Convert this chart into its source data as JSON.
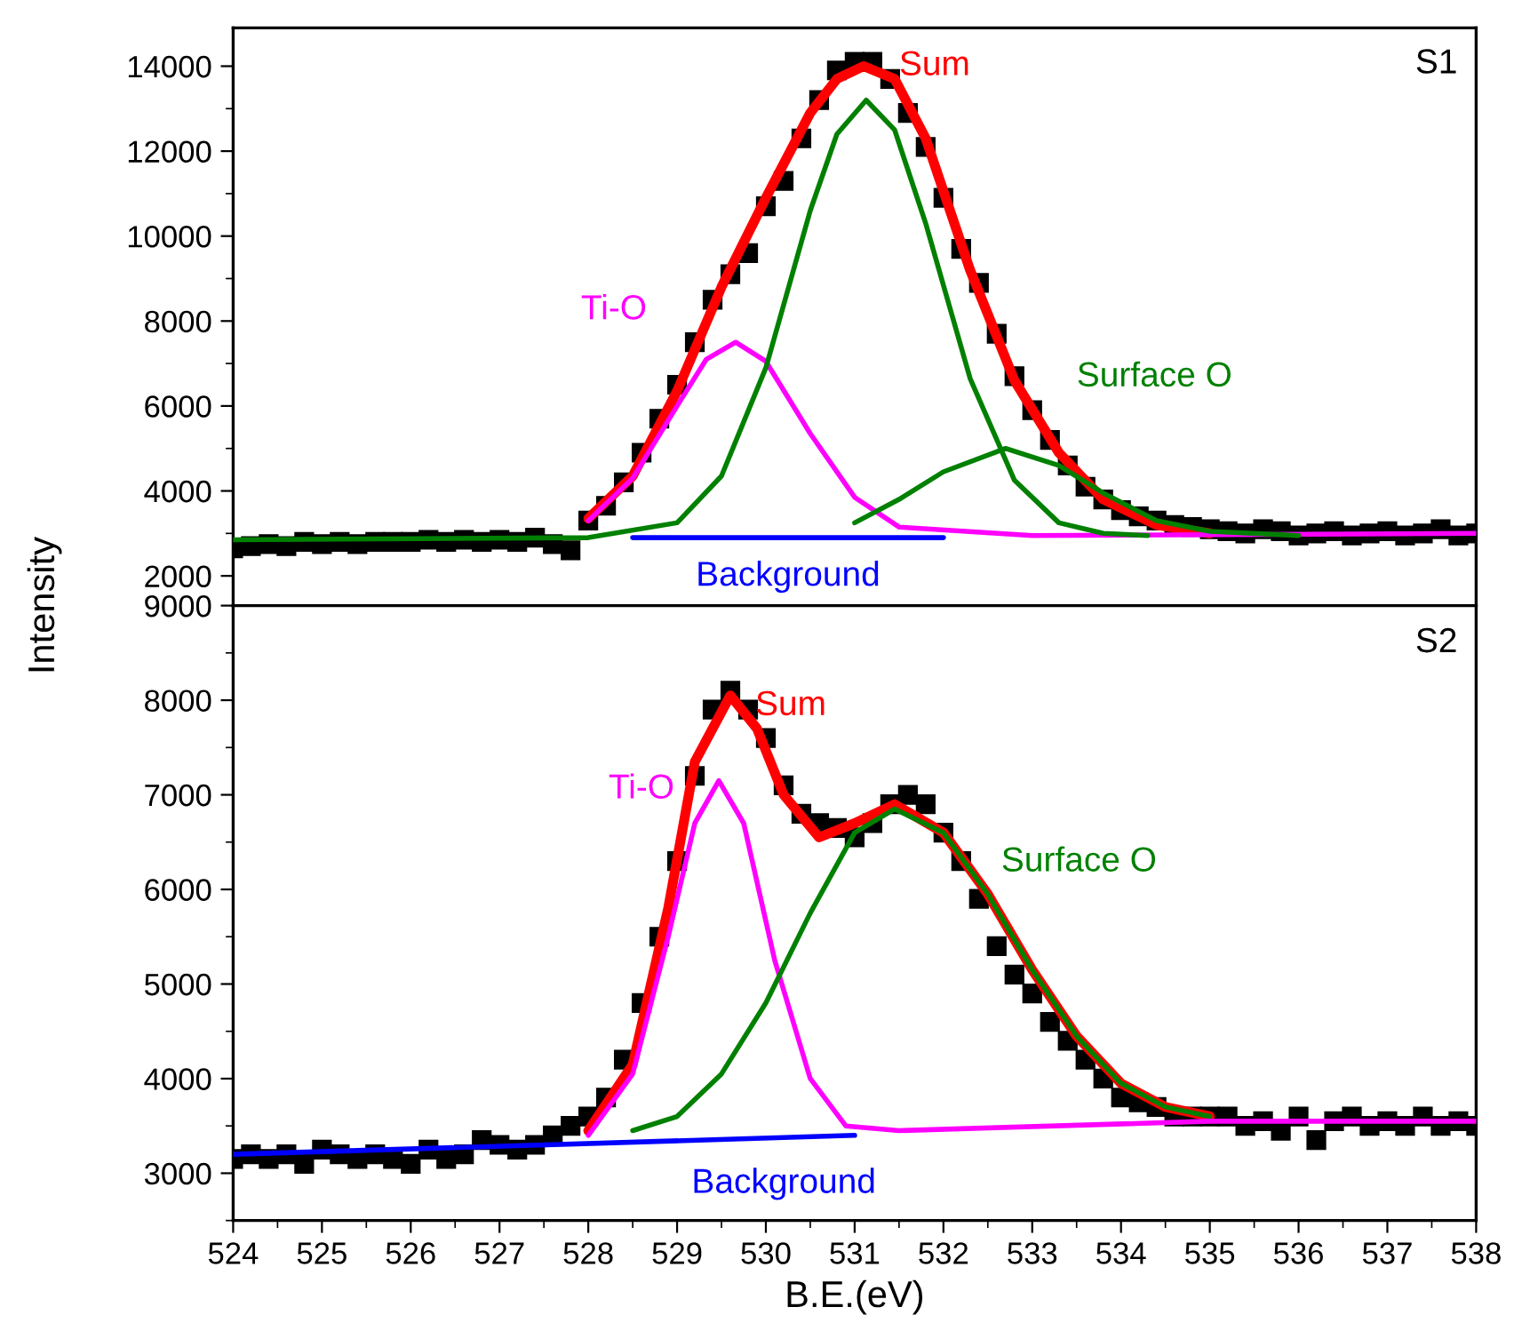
{
  "chart_data": [
    {
      "type": "line",
      "annotations": [
        "S1"
      ],
      "xlim": [
        524,
        538
      ],
      "xticks": [
        524,
        525,
        526,
        527,
        528,
        529,
        530,
        531,
        532,
        533,
        534,
        535,
        536,
        537,
        538
      ],
      "ylim": [
        1300,
        14900
      ],
      "yticks": [
        2000,
        4000,
        6000,
        8000,
        10000,
        12000,
        14000
      ],
      "tick_labels": "y",
      "line_style": "solid",
      "series": [
        {
          "type": "scatter",
          "marker": "square",
          "color": "#000000",
          "x": [
            524.0,
            524.2,
            524.4,
            524.6,
            524.8,
            525.0,
            525.2,
            525.4,
            525.6,
            525.8,
            526.0,
            526.2,
            526.4,
            526.6,
            526.8,
            527.0,
            527.2,
            527.4,
            527.6,
            527.8,
            528.0,
            528.2,
            528.4,
            528.6,
            528.8,
            529.0,
            529.2,
            529.4,
            529.6,
            529.8,
            530.0,
            530.2,
            530.4,
            530.6,
            530.8,
            531.0,
            531.2,
            531.4,
            531.6,
            531.8,
            532.0,
            532.2,
            532.4,
            532.6,
            532.8,
            533.0,
            533.2,
            533.4,
            533.6,
            533.8,
            534.0,
            534.2,
            534.4,
            534.6,
            534.8,
            535.0,
            535.2,
            535.4,
            535.6,
            535.8,
            536.0,
            536.2,
            536.4,
            536.6,
            536.8,
            537.0,
            537.2,
            537.4,
            537.6,
            537.8,
            538.0
          ],
          "values": [
            2650,
            2700,
            2750,
            2700,
            2800,
            2750,
            2800,
            2750,
            2800,
            2800,
            2800,
            2850,
            2800,
            2850,
            2800,
            2850,
            2800,
            2900,
            2750,
            2600,
            3300,
            3650,
            4200,
            4900,
            5700,
            6500,
            7500,
            8500,
            9100,
            9600,
            10700,
            11300,
            12300,
            13200,
            13900,
            14100,
            14100,
            13700,
            12900,
            12100,
            10900,
            9700,
            8900,
            7700,
            6700,
            5900,
            5200,
            4600,
            4100,
            3800,
            3550,
            3400,
            3300,
            3200,
            3150,
            3100,
            3050,
            3000,
            3100,
            3050,
            2950,
            3000,
            3050,
            2950,
            3000,
            3050,
            2950,
            3000,
            3100,
            2950,
            3000
          ]
        },
        {
          "name": "Background",
          "color": "#0000ff",
          "x": [
            528.5,
            532
          ],
          "values": [
            2900,
            2900
          ]
        },
        {
          "name": "Sum",
          "color": "#ff0000",
          "x": [
            528,
            528.5,
            529,
            529.5,
            530,
            530.5,
            530.8,
            531.1,
            531.45,
            531.8,
            532.3,
            532.8,
            533.3,
            533.8,
            534.4,
            535
          ],
          "values": [
            3350,
            4350,
            6350,
            8800,
            10900,
            12900,
            13700,
            14000,
            13700,
            12300,
            9200,
            6600,
            4900,
            3800,
            3200,
            3000
          ]
        },
        {
          "name": "Ti-O",
          "color": "#ff00ff",
          "x": [
            528,
            528.5,
            529,
            529.33,
            529.66,
            530,
            530.5,
            531,
            531.5,
            533,
            538
          ],
          "values": [
            3300,
            4300,
            6000,
            7100,
            7500,
            7050,
            5350,
            3850,
            3150,
            2950,
            3000
          ]
        },
        {
          "color": "#008000",
          "x": [
            524,
            528,
            529,
            529.5,
            530,
            530.5,
            530.8,
            531.13,
            531.45,
            531.8,
            532.3,
            532.8,
            533.3,
            533.8,
            534.3
          ],
          "values": [
            2850,
            2900,
            3250,
            4350,
            6900,
            10600,
            12400,
            13200,
            12500,
            10300,
            6650,
            4250,
            3250,
            3000,
            2950
          ]
        },
        {
          "name": "Surface O",
          "color": "#008000",
          "x": [
            531,
            531.5,
            532,
            532.7,
            533.3,
            533.8,
            534.4,
            535,
            536
          ],
          "values": [
            3250,
            3800,
            4450,
            5000,
            4600,
            3950,
            3300,
            3050,
            2950
          ]
        }
      ]
    },
    {
      "type": "line",
      "annotations": [
        "S2"
      ],
      "xlabel": "B.E.(eV)",
      "ylabel": "Intensity",
      "xlim": [
        524,
        538
      ],
      "xticks": [
        524,
        525,
        526,
        527,
        528,
        529,
        530,
        531,
        532,
        533,
        534,
        535,
        536,
        537,
        538
      ],
      "ylim": [
        2500,
        9000
      ],
      "yticks": [
        3000,
        4000,
        5000,
        6000,
        7000,
        8000,
        9000
      ],
      "line_style": "solid",
      "series": [
        {
          "type": "scatter",
          "marker": "square",
          "color": "#000000",
          "x": [
            524.0,
            524.2,
            524.4,
            524.6,
            524.8,
            525.0,
            525.2,
            525.4,
            525.6,
            525.8,
            526.0,
            526.2,
            526.4,
            526.6,
            526.8,
            527.0,
            527.2,
            527.4,
            527.6,
            527.8,
            528.0,
            528.2,
            528.4,
            528.6,
            528.8,
            529.0,
            529.2,
            529.4,
            529.6,
            529.8,
            530.0,
            530.2,
            530.4,
            530.6,
            530.8,
            531.0,
            531.2,
            531.4,
            531.6,
            531.8,
            532.0,
            532.2,
            532.4,
            532.6,
            532.8,
            533.0,
            533.2,
            533.4,
            533.6,
            533.8,
            534.0,
            534.2,
            534.4,
            534.6,
            534.8,
            535.0,
            535.2,
            535.4,
            535.6,
            535.8,
            536.0,
            536.2,
            536.4,
            536.6,
            536.8,
            537.0,
            537.2,
            537.4,
            537.6,
            537.8,
            538.0
          ],
          "values": [
            3150,
            3200,
            3150,
            3200,
            3100,
            3250,
            3200,
            3150,
            3200,
            3150,
            3100,
            3250,
            3150,
            3200,
            3350,
            3300,
            3250,
            3300,
            3400,
            3500,
            3600,
            3800,
            4200,
            4800,
            5500,
            6300,
            7200,
            7900,
            8100,
            7900,
            7600,
            7100,
            6800,
            6700,
            6650,
            6550,
            6700,
            6900,
            7000,
            6900,
            6600,
            6300,
            5900,
            5400,
            5100,
            4900,
            4600,
            4400,
            4200,
            4000,
            3800,
            3750,
            3700,
            3600,
            3600,
            3600,
            3600,
            3500,
            3550,
            3450,
            3600,
            3350,
            3550,
            3600,
            3500,
            3550,
            3500,
            3600,
            3500,
            3550,
            3500
          ]
        },
        {
          "name": "Background",
          "color": "#0000ff",
          "x": [
            524,
            531
          ],
          "values": [
            3200,
            3400
          ]
        },
        {
          "name": "Sum",
          "color": "#ff0000",
          "x": [
            528,
            528.5,
            528.9,
            529.2,
            529.6,
            529.9,
            530.2,
            530.6,
            531,
            531.45,
            532,
            532.5,
            533,
            533.5,
            534,
            534.5,
            535
          ],
          "values": [
            3450,
            4150,
            5800,
            7350,
            8050,
            7700,
            7000,
            6550,
            6700,
            6900,
            6600,
            5950,
            5150,
            4450,
            3950,
            3700,
            3600
          ]
        },
        {
          "name": "Ti-O",
          "color": "#ff00ff",
          "x": [
            528,
            528.5,
            528.9,
            529.2,
            529.47,
            529.75,
            530.1,
            530.5,
            530.9,
            531.5,
            535,
            538
          ],
          "values": [
            3400,
            4050,
            5500,
            6700,
            7150,
            6700,
            5250,
            4000,
            3500,
            3450,
            3550,
            3550
          ]
        },
        {
          "name": "Surface O",
          "color": "#008000",
          "x": [
            528.5,
            529,
            529.5,
            530,
            530.5,
            531,
            531.45,
            532,
            532.5,
            533,
            533.5,
            534,
            534.5,
            535
          ],
          "values": [
            3450,
            3600,
            4050,
            4800,
            5750,
            6600,
            6850,
            6600,
            5950,
            5150,
            4450,
            3950,
            3700,
            3600
          ]
        }
      ]
    }
  ]
}
